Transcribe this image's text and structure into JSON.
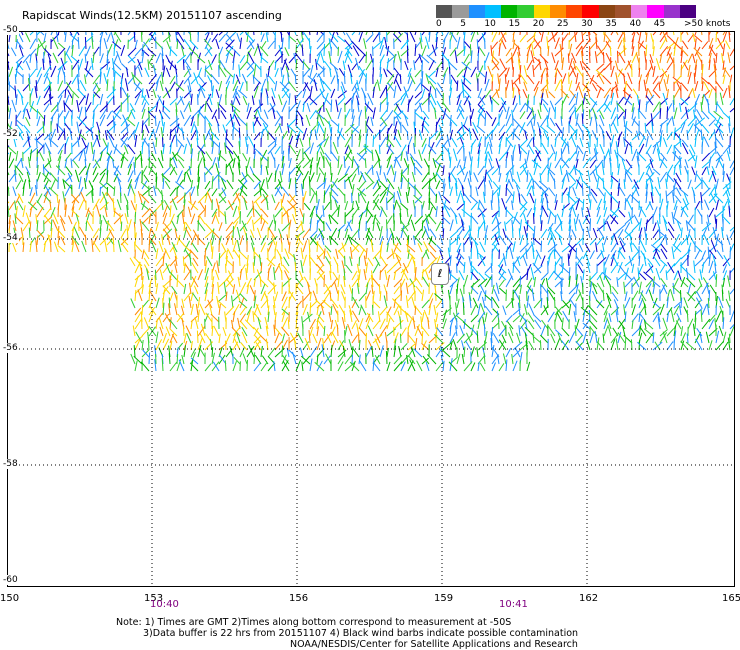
{
  "title": "Rapidscat Winds(12.5KM) 20151107 ascending",
  "legend": {
    "colors": [
      "#555555",
      "#9a9a9a",
      "#1e90ff",
      "#00bfff",
      "#00b400",
      "#32cd32",
      "#ffd700",
      "#ff8c00",
      "#ff4500",
      "#ff0000",
      "#8b4513",
      "#a0522d",
      "#ee82ee",
      "#ff00ff",
      "#9932cc",
      "#4b0082"
    ],
    "labels": [
      "0",
      "5",
      "10",
      "15",
      "20",
      "25",
      "30",
      "35",
      "40",
      "45",
      ">50 knots"
    ]
  },
  "map": {
    "lat_labels": [
      "-50",
      "-52",
      "-54",
      "-56",
      "-58",
      "-60"
    ],
    "lon_labels": [
      "150",
      "153",
      "156",
      "159",
      "162",
      "165"
    ],
    "times": [
      "10:40",
      "10:41"
    ],
    "compass_glyph": "ℓ"
  },
  "notes": {
    "line1": "Note: 1) Times are GMT 2)Times along bottom correspond to measurement at -50S",
    "line2": "3)Data buffer is 22 hrs from 20151107 4) Black wind barbs indicate possible contamination",
    "line3": "NOAA/NESDIS/Center for Satellite Applications and Research"
  }
}
